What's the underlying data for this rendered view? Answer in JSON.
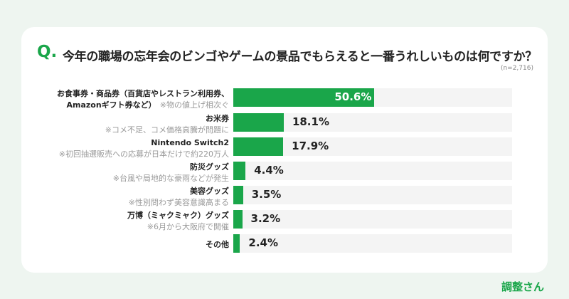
{
  "question_mark": "Q.",
  "chart_data": {
    "type": "bar",
    "orientation": "horizontal",
    "title": "今年の職場の忘年会のビンゴやゲームの景品でもらえると一番うれしいものは何ですか？",
    "sample_size": "(n=2,716)",
    "unit": "%",
    "xlim": [
      0,
      100
    ],
    "bar_color": "#1aa64a",
    "categories": [
      {
        "main": "お食事券・商品券（百貨店やレストラン利用券、",
        "main2": "Amazonギフト券など）",
        "note": "※物の値上げ相次ぐ"
      },
      {
        "main": "お米券",
        "note": "※コメ不足、コメ価格高騰が問題に"
      },
      {
        "main": "Nintendo Switch2",
        "note": "※初回抽選販売への応募が日本だけで約220万人"
      },
      {
        "main": "防災グッズ",
        "note": "※台風や局地的な豪雨などが発生"
      },
      {
        "main": "美容グッズ",
        "note": "※性別問わず美容意識高まる"
      },
      {
        "main": "万博（ミャクミャク）グッズ",
        "note": "※6月から大阪府で開催"
      },
      {
        "main": "その他",
        "note": ""
      }
    ],
    "values": [
      50.6,
      18.1,
      17.9,
      4.4,
      3.5,
      3.2,
      2.4
    ]
  },
  "logo": "調整さん"
}
